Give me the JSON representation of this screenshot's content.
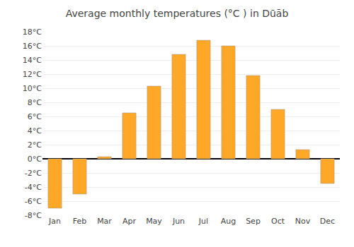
{
  "chart_data": {
    "type": "bar",
    "title": "Average monthly temperatures (°C ) in Dūāb",
    "categories": [
      "Jan",
      "Feb",
      "Mar",
      "Apr",
      "May",
      "Jun",
      "Jul",
      "Aug",
      "Sep",
      "Oct",
      "Nov",
      "Dec"
    ],
    "values": [
      -7,
      -5,
      0.3,
      6.5,
      10.3,
      14.8,
      16.8,
      16.0,
      11.8,
      7.0,
      1.3,
      -3.5
    ],
    "color": "#FFA726",
    "ylim": [
      -8,
      18
    ],
    "yticks": [
      {
        "value": -8,
        "label": "-8°C"
      },
      {
        "value": -6,
        "label": "-6°C"
      },
      {
        "value": -4,
        "label": "-4°C"
      },
      {
        "value": -2,
        "label": "-2°C"
      },
      {
        "value": 0,
        "label": "0°C"
      },
      {
        "value": 2,
        "label": "2°C"
      },
      {
        "value": 4,
        "label": "4°C"
      },
      {
        "value": 6,
        "label": "6°C"
      },
      {
        "value": 8,
        "label": "8°C"
      },
      {
        "value": 10,
        "label": "10°C"
      },
      {
        "value": 12,
        "label": "12°C"
      },
      {
        "value": 14,
        "label": "14°C"
      },
      {
        "value": 16,
        "label": "16°C"
      },
      {
        "value": 18,
        "label": "18°C"
      }
    ],
    "grid": true
  }
}
